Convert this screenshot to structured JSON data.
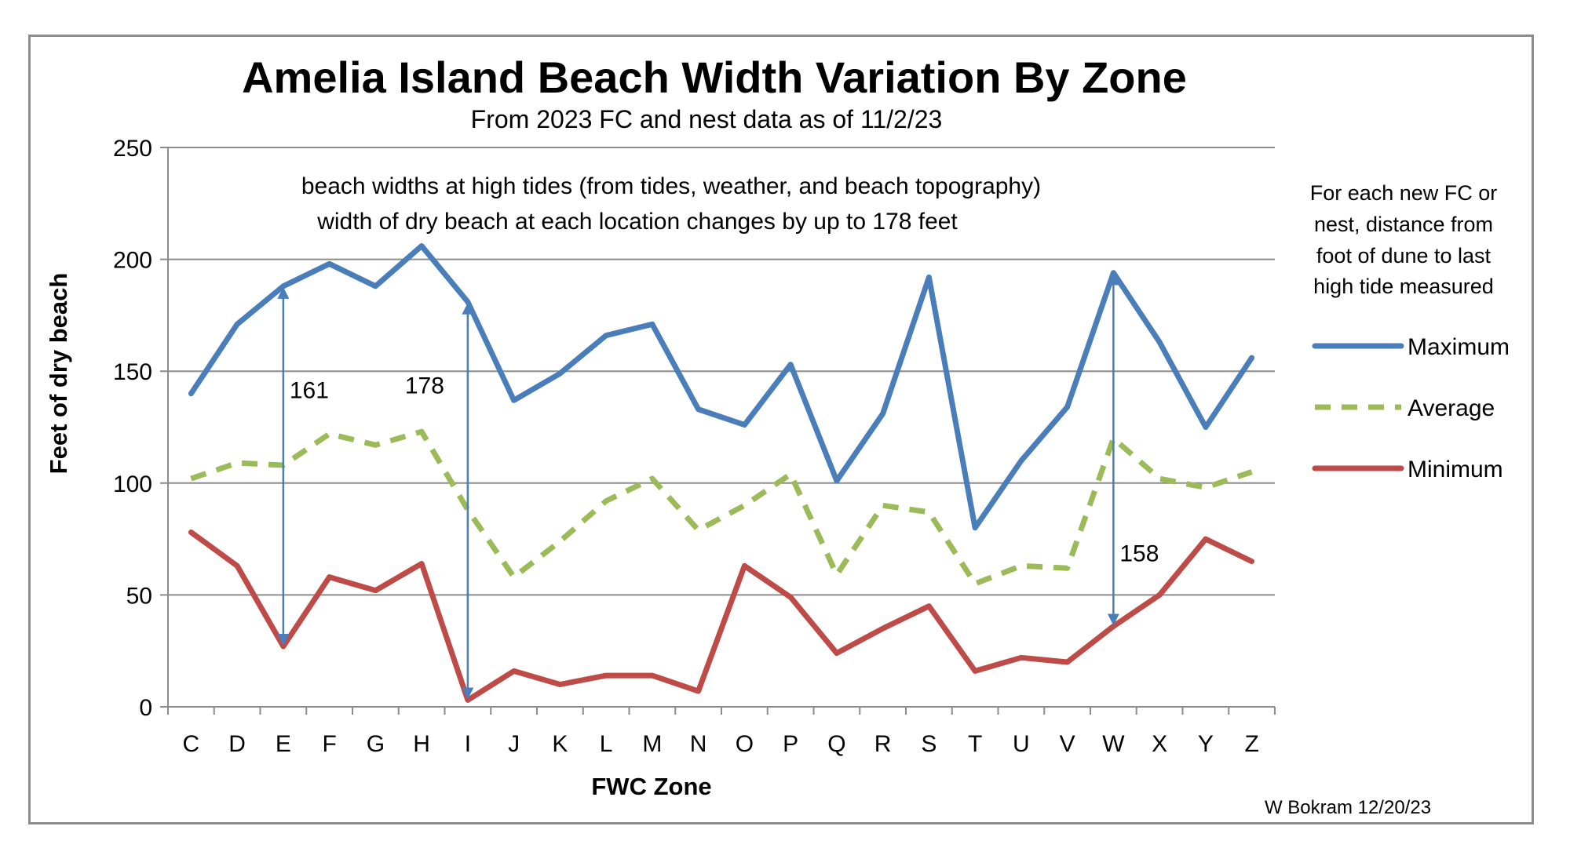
{
  "chart_data": {
    "type": "line",
    "title": "Amelia Island Beach Width Variation By Zone",
    "subtitle": "From 2023 FC and nest data as of 11/2/23",
    "xlabel": "FWC Zone",
    "ylabel": "Feet of dry beach",
    "ylim": [
      0,
      250
    ],
    "yticks": [
      "0",
      "50",
      "100",
      "150",
      "200",
      "250"
    ],
    "grid": true,
    "legend_position": "right",
    "categories": [
      "C",
      "D",
      "E",
      "F",
      "G",
      "H",
      "I",
      "J",
      "K",
      "L",
      "M",
      "N",
      "O",
      "P",
      "Q",
      "R",
      "S",
      "T",
      "U",
      "V",
      "W",
      "X",
      "Y",
      "Z"
    ],
    "series": [
      {
        "name": "Maximum",
        "color": "#4a7ebb",
        "dash": "solid",
        "values": [
          140,
          171,
          188,
          198,
          188,
          206,
          181,
          137,
          149,
          166,
          171,
          133,
          126,
          153,
          101,
          131,
          192,
          80,
          110,
          134,
          194,
          163,
          125,
          156
        ]
      },
      {
        "name": "Average",
        "color": "#9bbb59",
        "dash": "dashed",
        "values": [
          102,
          109,
          108,
          122,
          117,
          123,
          88,
          58,
          74,
          92,
          102,
          79,
          90,
          104,
          59,
          90,
          87,
          55,
          63,
          62,
          120,
          102,
          98,
          105
        ]
      },
      {
        "name": "Minimum",
        "color": "#be4b48",
        "dash": "solid",
        "values": [
          78,
          63,
          27,
          58,
          52,
          64,
          3,
          16,
          10,
          14,
          14,
          7,
          63,
          49,
          24,
          35,
          45,
          16,
          22,
          20,
          36,
          50,
          75,
          65
        ]
      }
    ],
    "annotations": {
      "line1": "beach widths at high tides (from tides, weather, and beach topography)",
      "line2": "width of dry beach at each location changes by up to 178 feet",
      "arrows": [
        {
          "zone": "E",
          "from": 188,
          "to": 27,
          "label": "161"
        },
        {
          "zone": "I",
          "from": 181,
          "to": 3,
          "label": "178"
        },
        {
          "zone": "W",
          "from": 194,
          "to": 36,
          "label": "158"
        }
      ]
    },
    "legend_note": [
      "For each new FC or",
      "nest, distance from",
      "foot of dune to last",
      "high tide measured"
    ],
    "credit": "W Bokram 12/20/23"
  }
}
